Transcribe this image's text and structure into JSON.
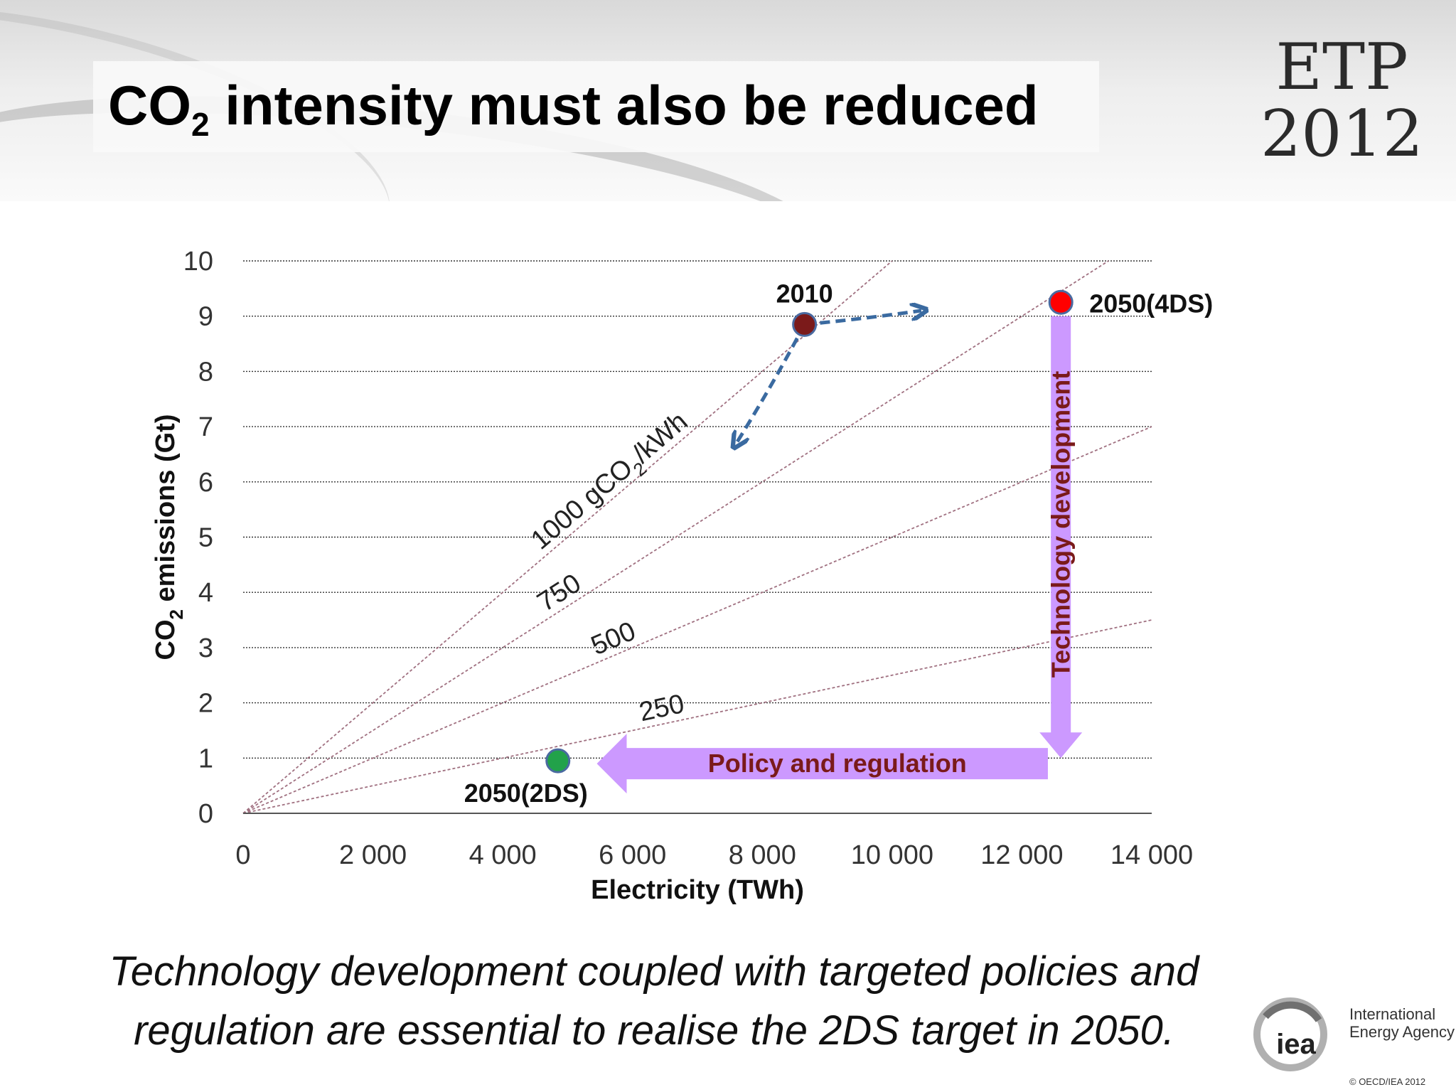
{
  "header": {
    "title_prefix": "CO",
    "title_sub": "2",
    "title_suffix": " intensity must also be reduced",
    "logo_line1": "ETP",
    "logo_line2": "2012"
  },
  "chart_data": {
    "type": "scatter",
    "xlabel": "Electricity (TWh)",
    "ylabel_prefix": "CO",
    "ylabel_sub": "2",
    "ylabel_suffix": " emissions  (Gt)",
    "xlim": [
      0,
      14000
    ],
    "ylim": [
      0,
      10
    ],
    "xticks": [
      0,
      2000,
      4000,
      6000,
      8000,
      10000,
      12000,
      14000
    ],
    "xtick_labels": [
      "0",
      "2 000",
      "4 000",
      "6 000",
      "8 000",
      "10 000",
      "12 000",
      "14 000"
    ],
    "yticks": [
      0,
      1,
      2,
      3,
      4,
      5,
      6,
      7,
      8,
      9,
      10
    ],
    "ytick_labels": [
      "0",
      "1",
      "2",
      "3",
      "4",
      "5",
      "6",
      "7",
      "8",
      "9",
      "10"
    ],
    "grid": true,
    "intensity_lines": [
      {
        "gco2_per_kwh": 1000,
        "label_prefix": "1000 gCO",
        "label_sub": "2",
        "label_suffix": "/kWh",
        "label_at_x": 5800
      },
      {
        "gco2_per_kwh": 750,
        "label": "750",
        "label_at_x": 5000
      },
      {
        "gco2_per_kwh": 500,
        "label": "500",
        "label_at_x": 5800
      },
      {
        "gco2_per_kwh": 250,
        "label": "250",
        "label_at_x": 6500
      }
    ],
    "points": [
      {
        "label": "2010",
        "x": 8650,
        "y": 8.85,
        "color": "#7b1a1a"
      },
      {
        "label": "2050(4DS)",
        "x": 12600,
        "y": 9.25,
        "color": "#ff0000"
      },
      {
        "label": "2050(2DS)",
        "x": 4850,
        "y": 0.95,
        "color": "#22a24a"
      }
    ],
    "annotations": [
      {
        "text": "Technology  development",
        "from": [
          12600,
          9.0
        ],
        "to": [
          12600,
          1.0
        ]
      },
      {
        "text": "Policy and regulation",
        "from": [
          12400,
          0.9
        ],
        "to": [
          5450,
          0.9
        ]
      }
    ],
    "direction_arrows": [
      {
        "from": [
          8650,
          8.85
        ],
        "to": [
          10450,
          9.1
        ]
      },
      {
        "from": [
          8650,
          8.85
        ],
        "to": [
          7600,
          6.7
        ]
      }
    ]
  },
  "footer": {
    "caption_line1": "Technology development coupled with targeted policies and",
    "caption_line2": "regulation are essential to realise the 2DS target in 2050.",
    "org_line1": "International",
    "org_line2": "Energy Agency",
    "org_short": "iea",
    "copyright": "© OECD/IEA 2012"
  },
  "colors": {
    "intensity_line": "#a07080",
    "arrow_fill": "#cc99ff",
    "arrow_text": "#7a1a1a",
    "dashed_arrow": "#3a6aa0"
  }
}
